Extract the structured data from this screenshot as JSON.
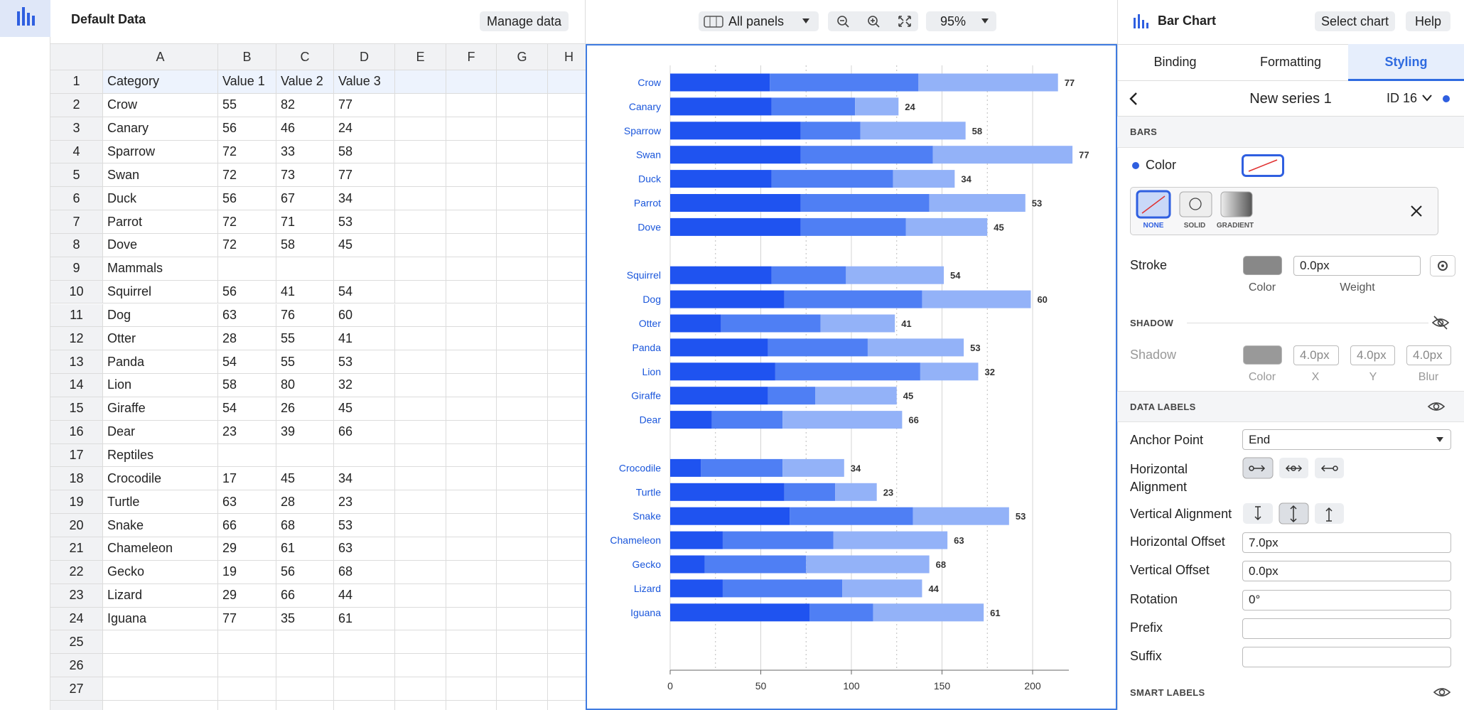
{
  "app": {
    "data_title": "Default Data",
    "manage_data": "Manage data",
    "panels": "All panels",
    "zoom": "95%"
  },
  "spreadsheet": {
    "columns": [
      "A",
      "B",
      "C",
      "D",
      "E",
      "F",
      "G",
      "H"
    ],
    "row_numbers": [
      1,
      2,
      3,
      4,
      5,
      6,
      7,
      8,
      9,
      10,
      11,
      12,
      13,
      14,
      15,
      16,
      17,
      18,
      19,
      20,
      21,
      22,
      23,
      24,
      25,
      26,
      27
    ],
    "rows": [
      [
        "Category",
        "Value 1",
        "Value 2",
        "Value 3"
      ],
      [
        "Crow",
        55,
        82,
        77
      ],
      [
        "Canary",
        56,
        46,
        24
      ],
      [
        "Sparrow",
        72,
        33,
        58
      ],
      [
        "Swan",
        72,
        73,
        77
      ],
      [
        "Duck",
        56,
        67,
        34
      ],
      [
        "Parrot",
        72,
        71,
        53
      ],
      [
        "Dove",
        72,
        58,
        45
      ],
      [
        "Mammals"
      ],
      [
        "Squirrel",
        56,
        41,
        54
      ],
      [
        "Dog",
        63,
        76,
        60
      ],
      [
        "Otter",
        28,
        55,
        41
      ],
      [
        "Panda",
        54,
        55,
        53
      ],
      [
        "Lion",
        58,
        80,
        32
      ],
      [
        "Giraffe",
        54,
        26,
        45
      ],
      [
        "Dear",
        23,
        39,
        66
      ],
      [
        "Reptiles"
      ],
      [
        "Crocodile",
        17,
        45,
        34
      ],
      [
        "Turtle",
        63,
        28,
        23
      ],
      [
        "Snake",
        66,
        68,
        53
      ],
      [
        "Chameleon",
        29,
        61,
        63
      ],
      [
        "Gecko",
        19,
        56,
        68
      ],
      [
        "Lizard",
        29,
        66,
        44
      ],
      [
        "Iguana",
        77,
        35,
        61
      ]
    ]
  },
  "chart_data": {
    "type": "bar",
    "orientation": "horizontal",
    "stacked": true,
    "categories": [
      "Crow",
      "Canary",
      "Sparrow",
      "Swan",
      "Duck",
      "Parrot",
      "Dove",
      null,
      "Squirrel",
      "Dog",
      "Otter",
      "Panda",
      "Lion",
      "Giraffe",
      "Dear",
      null,
      "Crocodile",
      "Turtle",
      "Snake",
      "Chameleon",
      "Gecko",
      "Lizard",
      "Iguana"
    ],
    "series": [
      {
        "color": "#1f53f0",
        "values": [
          55,
          56,
          72,
          72,
          56,
          72,
          72,
          null,
          56,
          63,
          28,
          54,
          58,
          54,
          23,
          null,
          17,
          63,
          66,
          29,
          19,
          29,
          77
        ]
      },
      {
        "color": "#4f7ff4",
        "values": [
          82,
          46,
          33,
          73,
          67,
          71,
          58,
          null,
          41,
          76,
          55,
          55,
          80,
          26,
          39,
          null,
          45,
          28,
          68,
          61,
          56,
          66,
          35
        ]
      },
      {
        "color": "#93b2f8",
        "values": [
          77,
          24,
          58,
          77,
          34,
          53,
          45,
          null,
          54,
          60,
          41,
          53,
          32,
          45,
          66,
          null,
          34,
          23,
          53,
          63,
          68,
          44,
          61
        ]
      }
    ],
    "xlim": [
      0,
      220
    ],
    "xticks": [
      0,
      50,
      100,
      150,
      200
    ],
    "minor_xticks": [
      25,
      75,
      125,
      175
    ],
    "grid": true,
    "data_labels": true,
    "label_color": "#1a56db"
  },
  "sidebar": {
    "title": "Bar Chart",
    "select_chart": "Select chart",
    "help": "Help",
    "tabs": [
      "Binding",
      "Formatting",
      "Styling"
    ],
    "series_name": "New series 1",
    "series_id": "ID 16",
    "bars": "BARS",
    "color": "Color",
    "fill_options": [
      "NONE",
      "SOLID",
      "GRADIENT"
    ],
    "stroke": "Stroke",
    "stroke_weight": "0.0px",
    "stroke_labels": [
      "Color",
      "Weight"
    ],
    "shadow_section": "SHADOW",
    "shadow": "Shadow",
    "shadow_values": [
      "4.0px",
      "4.0px",
      "4.0px"
    ],
    "shadow_labels": [
      "Color",
      "X",
      "Y",
      "Blur"
    ],
    "data_labels": "DATA LABELS",
    "anchor_point": "Anchor Point",
    "anchor_value": "End",
    "horizontal_alignment": "Horizontal Alignment",
    "vertical_alignment": "Vertical Alignment",
    "fields": [
      {
        "label": "Horizontal Offset",
        "value": "7.0px"
      },
      {
        "label": "Vertical Offset",
        "value": "0.0px"
      },
      {
        "label": "Rotation",
        "value": "0°"
      },
      {
        "label": "Prefix"
      },
      {
        "label": "Suffix"
      }
    ],
    "smart_labels": "SMART LABELS"
  }
}
